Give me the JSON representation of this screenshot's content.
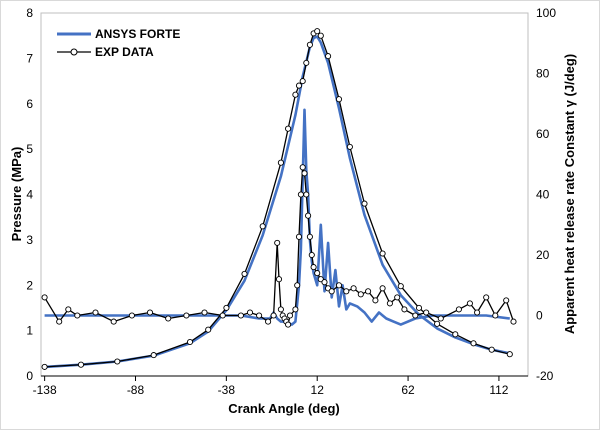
{
  "chart_data": {
    "type": "line",
    "xlabel": "Crank Angle (deg)",
    "ylabel_left": "Pressure (MPa)",
    "ylabel_right": "Apparent heat release rate Constant  γ  (J/deg)",
    "xlim": [
      -140,
      128
    ],
    "ylim_left": [
      0,
      8
    ],
    "ylim_right": [
      -20,
      100
    ],
    "x_ticks": [
      -138,
      -88,
      -38,
      12,
      62,
      112
    ],
    "y_ticks_left": [
      0,
      1,
      2,
      3,
      4,
      5,
      6,
      7,
      8
    ],
    "y_ticks_right": [
      -20,
      0,
      20,
      40,
      60,
      80,
      100
    ],
    "grid": false,
    "legend_position": "top-left",
    "legend": [
      "ANSYS FORTE",
      "EXP DATA"
    ],
    "colors": {
      "forte": "#4472c4",
      "exp": "#000000"
    },
    "series": [
      {
        "name": "ANSYS FORTE",
        "axis": "left",
        "kind": "pressure",
        "x": [
          -138,
          -118,
          -98,
          -78,
          -58,
          -48,
          -38,
          -28,
          -18,
          -8,
          0,
          4,
          8,
          10,
          12,
          14,
          18,
          24,
          30,
          38,
          48,
          58,
          68,
          78,
          88,
          98,
          108,
          118
        ],
        "y": [
          0.2,
          0.25,
          0.32,
          0.45,
          0.72,
          0.98,
          1.45,
          2.1,
          3.1,
          4.4,
          5.75,
          6.6,
          7.25,
          7.45,
          7.48,
          7.35,
          6.9,
          5.9,
          4.8,
          3.55,
          2.45,
          1.78,
          1.35,
          1.05,
          0.85,
          0.7,
          0.58,
          0.5
        ]
      },
      {
        "name": "EXP DATA",
        "axis": "left",
        "kind": "pressure",
        "x": [
          -138,
          -118,
          -98,
          -78,
          -58,
          -48,
          -38,
          -28,
          -18,
          -8,
          -4,
          0,
          2,
          4,
          6,
          8,
          10,
          12,
          14,
          18,
          24,
          30,
          38,
          48,
          58,
          68,
          78,
          88,
          98,
          108,
          118
        ],
        "y": [
          0.2,
          0.25,
          0.32,
          0.46,
          0.75,
          1.02,
          1.5,
          2.25,
          3.3,
          4.7,
          5.45,
          6.2,
          6.4,
          6.5,
          6.9,
          7.3,
          7.55,
          7.6,
          7.5,
          7.05,
          6.1,
          5.05,
          3.8,
          2.7,
          1.98,
          1.5,
          1.15,
          0.92,
          0.72,
          0.58,
          0.48
        ]
      },
      {
        "name": "ANSYS FORTE",
        "axis": "right",
        "kind": "heat-release",
        "x": [
          -138,
          -110,
          -80,
          -50,
          -30,
          -20,
          -14,
          -12,
          -10,
          -8,
          -5,
          -2,
          0,
          2,
          3,
          4,
          5,
          6,
          7,
          8,
          9,
          10,
          12,
          14,
          16,
          18,
          20,
          22,
          24,
          26,
          28,
          30,
          34,
          38,
          42,
          46,
          50,
          54,
          58,
          66,
          76,
          90,
          105,
          118
        ],
        "y": [
          0,
          0,
          0,
          0,
          0,
          -1,
          -1,
          1,
          -1,
          -2,
          -2,
          -3,
          -2,
          10,
          22,
          45,
          68,
          48,
          40,
          25,
          18,
          14,
          10,
          30,
          8,
          24,
          6,
          15,
          3,
          10,
          2,
          4,
          3,
          1,
          -2,
          1,
          -1,
          -2,
          -3,
          -1,
          0,
          0,
          0,
          -1
        ]
      },
      {
        "name": "EXP DATA",
        "axis": "right",
        "kind": "heat-release",
        "x": [
          -138,
          -130,
          -125,
          -120,
          -110,
          -100,
          -90,
          -80,
          -70,
          -60,
          -50,
          -40,
          -30,
          -25,
          -20,
          -15,
          -12,
          -10,
          -9,
          -8,
          -7,
          -6,
          -5,
          -4,
          -3,
          0,
          1,
          2,
          3,
          4,
          5,
          6,
          7,
          8,
          9,
          10,
          12,
          14,
          16,
          18,
          20,
          24,
          28,
          32,
          36,
          40,
          44,
          48,
          52,
          56,
          60,
          66,
          72,
          80,
          90,
          96,
          100,
          105,
          110,
          116,
          120
        ],
        "y": [
          6,
          -2,
          2,
          0,
          1,
          -2,
          0,
          1,
          -1,
          0,
          1,
          0,
          0,
          1,
          0,
          -2,
          0,
          24,
          12,
          2,
          0,
          -1,
          -2,
          -3,
          0,
          2,
          10,
          26,
          40,
          49,
          47,
          40,
          33,
          26,
          20,
          16,
          14,
          12,
          11,
          9,
          8,
          10,
          8,
          9,
          7,
          8,
          5,
          9,
          4,
          6,
          2,
          0,
          1,
          -1,
          2,
          4,
          1,
          6,
          0,
          5,
          -2
        ]
      }
    ]
  }
}
